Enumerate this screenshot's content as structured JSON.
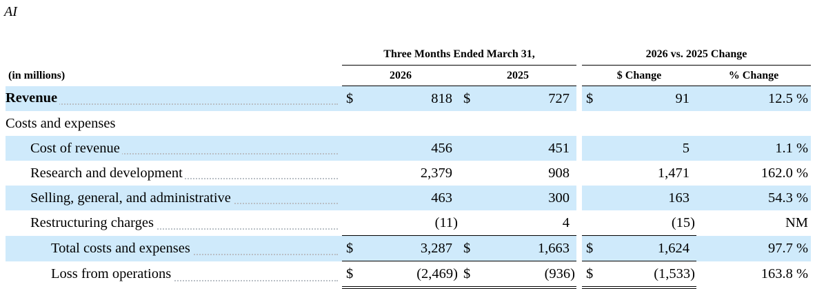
{
  "segment_title": "AI",
  "header": {
    "period_group": "Three Months Ended March 31,",
    "change_group": "2026 vs. 2025 Change",
    "unit_label": "(in millions)",
    "col_2026": "2026",
    "col_2025": "2025",
    "col_dollar_change": "$ Change",
    "col_pct_change": "% Change"
  },
  "currency_symbol": "$",
  "rows": [
    {
      "label": "Revenue",
      "v2026": "818",
      "v2025": "727",
      "chg": "91",
      "pct": "12.5 %"
    },
    {
      "label": "Costs and expenses"
    },
    {
      "label": "Cost of revenue",
      "v2026": "456",
      "v2025": "451",
      "chg": "5",
      "pct": "1.1 %"
    },
    {
      "label": "Research and development",
      "v2026": "2,379",
      "v2025": "908",
      "chg": "1,471",
      "pct": "162.0 %"
    },
    {
      "label": "Selling, general, and administrative",
      "v2026": "463",
      "v2025": "300",
      "chg": "163",
      "pct": "54.3 %"
    },
    {
      "label": "Restructuring charges",
      "v2026": "(11)",
      "v2025": "4",
      "chg": "(15)",
      "pct": "NM"
    },
    {
      "label": "Total costs and expenses",
      "v2026": "3,287",
      "v2025": "1,663",
      "chg": "1,624",
      "pct": "97.7 %"
    },
    {
      "label": "Loss from operations",
      "v2026": "(2,469)",
      "v2025": "(936)",
      "chg": "(1,533)",
      "pct": "163.8 %"
    }
  ]
}
